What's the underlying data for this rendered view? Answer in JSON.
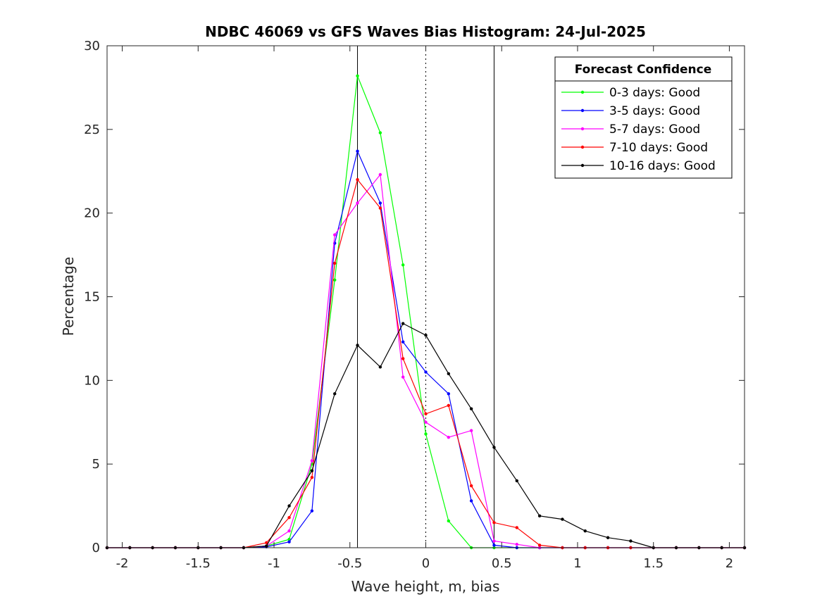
{
  "chart_data": {
    "type": "line",
    "title": "NDBC 46069 vs GFS Waves Bias Histogram: 24-Jul-2025",
    "xlabel": "Wave height, m, bias",
    "ylabel": "Percentage",
    "xlim": [
      -2.1,
      2.1
    ],
    "ylim": [
      0,
      30
    ],
    "xticks": [
      -2,
      -1.5,
      -1,
      -0.5,
      0,
      0.5,
      1,
      1.5,
      2
    ],
    "xtick_labels": [
      "-2",
      "-1.5",
      "-1",
      "-0.5",
      "0",
      "0.5",
      "1",
      "1.5",
      "2"
    ],
    "yticks": [
      0,
      5,
      10,
      15,
      20,
      25,
      30
    ],
    "ytick_labels": [
      "0",
      "5",
      "10",
      "15",
      "20",
      "25",
      "30"
    ],
    "grid": false,
    "reference_lines": [
      {
        "x": -0.45,
        "style": "solid",
        "color": "#000000"
      },
      {
        "x": 0,
        "style": "dotted",
        "color": "#000000"
      },
      {
        "x": 0.45,
        "style": "solid",
        "color": "#000000"
      }
    ],
    "legend": {
      "title": "Forecast Confidence",
      "position": "top-right"
    },
    "x": [
      -2.1,
      -1.95,
      -1.8,
      -1.65,
      -1.5,
      -1.35,
      -1.2,
      -1.05,
      -0.9,
      -0.75,
      -0.6,
      -0.45,
      -0.3,
      -0.15,
      0,
      0.15,
      0.3,
      0.45,
      0.6,
      0.75,
      0.9,
      1.05,
      1.2,
      1.35,
      1.5,
      1.65,
      1.8,
      1.95,
      2.1
    ],
    "series": [
      {
        "name": "0-3 days: Good",
        "color": "#00ff00",
        "values": [
          0,
          0,
          0,
          0,
          0,
          0,
          0,
          0.1,
          0.5,
          5.0,
          16.0,
          28.2,
          24.8,
          16.9,
          6.8,
          1.6,
          0,
          0,
          0,
          0,
          0,
          0,
          0,
          0,
          0,
          0,
          0,
          0,
          0
        ]
      },
      {
        "name": "3-5 days: Good",
        "color": "#0000ff",
        "values": [
          0,
          0,
          0,
          0,
          0,
          0,
          0,
          0.05,
          0.35,
          2.2,
          18.2,
          23.7,
          20.6,
          12.3,
          10.5,
          9.2,
          2.8,
          0.15,
          0,
          0,
          0,
          0,
          0,
          0,
          0,
          0,
          0,
          0,
          0
        ]
      },
      {
        "name": "5-7 days: Good",
        "color": "#ff00ff",
        "values": [
          0,
          0,
          0,
          0,
          0,
          0,
          0,
          0.1,
          1.0,
          5.2,
          18.7,
          20.6,
          22.3,
          10.2,
          7.5,
          6.6,
          7.0,
          0.4,
          0.2,
          0,
          0,
          0,
          0,
          0,
          0,
          0,
          0,
          0,
          0
        ]
      },
      {
        "name": "7-10 days: Good",
        "color": "#ff0000",
        "values": [
          0,
          0,
          0,
          0,
          0,
          0,
          0,
          0.3,
          1.8,
          4.2,
          17.0,
          22.0,
          20.3,
          11.3,
          8.0,
          8.5,
          3.7,
          1.5,
          1.2,
          0.15,
          0,
          0,
          0,
          0,
          0,
          0,
          0,
          0,
          0
        ]
      },
      {
        "name": "10-16 days: Good",
        "color": "#000000",
        "values": [
          0,
          0,
          0,
          0,
          0,
          0,
          0,
          0.1,
          2.5,
          4.6,
          9.2,
          12.1,
          10.8,
          13.4,
          12.7,
          10.4,
          8.3,
          6.0,
          4.0,
          1.9,
          1.7,
          1.0,
          0.6,
          0.4,
          0,
          0,
          0,
          0,
          0
        ]
      }
    ]
  }
}
